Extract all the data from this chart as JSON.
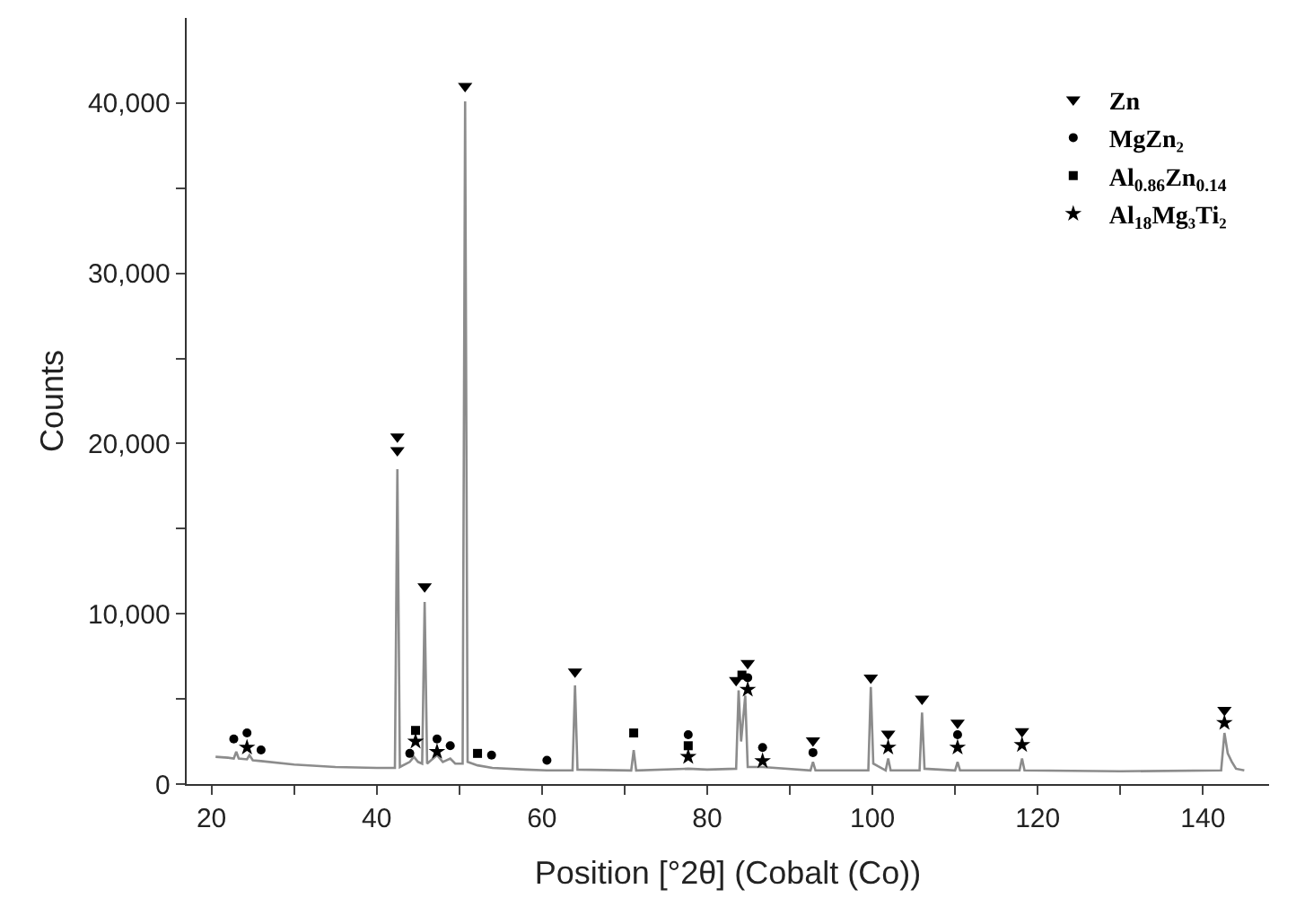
{
  "chart_data": {
    "type": "line",
    "xlabel": "Position [°2θ] (Cobalt (Co))",
    "ylabel": "Counts",
    "xlim": [
      17,
      148
    ],
    "xticks": [
      20,
      {
        "value": 30,
        "label": null
      },
      40,
      {
        "value": 50,
        "label": null
      },
      60,
      {
        "value": 70,
        "label": null
      },
      80,
      {
        "value": 90,
        "label": null
      },
      100,
      {
        "value": 110,
        "label": null
      },
      120,
      {
        "value": 130,
        "label": null
      },
      140
    ],
    "ylim": [
      0,
      45000
    ],
    "yticks": [
      0,
      {
        "value": 5000,
        "label": null
      },
      {
        "value": 10000,
        "label": "10,000"
      },
      {
        "value": 15000,
        "label": null
      },
      {
        "value": 20000,
        "label": "20,000"
      },
      {
        "value": 25000,
        "label": null
      },
      {
        "value": 30000,
        "label": "30,000"
      },
      {
        "value": 35000,
        "label": null
      },
      {
        "value": 40000,
        "label": "40,000"
      }
    ],
    "legend": "top right",
    "series": [
      {
        "color": "#8c8c8c",
        "marker": "none",
        "x": [
          20.5,
          22,
          22.7,
          23,
          23.3,
          24.3,
          24.6,
          25,
          26,
          30,
          35,
          40,
          42.2,
          42.5,
          42.8,
          44,
          44.5,
          45,
          45.5,
          45.8,
          46.1,
          47.3,
          48,
          48.9,
          49.5,
          50.4,
          50.7,
          51,
          52.2,
          54,
          58,
          60.6,
          63.7,
          64.0,
          64.3,
          70.8,
          71.1,
          71.4,
          77.7,
          80,
          83.5,
          83.8,
          84.1,
          84.6,
          84.9,
          86.7,
          92.5,
          92.8,
          93.1,
          99.5,
          99.8,
          100.1,
          101.6,
          101.9,
          102.2,
          105.7,
          106,
          106.3,
          110,
          110.3,
          110.6,
          117.8,
          118.1,
          118.4,
          130,
          142.2,
          142.6,
          143,
          143.5,
          144,
          145
        ],
        "values": [
          1600,
          1550,
          1500,
          1900,
          1500,
          1450,
          1700,
          1400,
          1350,
          1150,
          1000,
          950,
          950,
          18500,
          1000,
          1300,
          1600,
          1300,
          1200,
          10700,
          1200,
          1700,
          1300,
          1500,
          1200,
          1200,
          40100,
          1300,
          1100,
          950,
          850,
          800,
          800,
          5800,
          850,
          800,
          2000,
          800,
          900,
          850,
          900,
          5500,
          2500,
          5200,
          1000,
          1000,
          800,
          1300,
          800,
          800,
          5700,
          1200,
          800,
          1500,
          800,
          800,
          4200,
          900,
          800,
          1300,
          800,
          800,
          1500,
          800,
          750,
          800,
          3000,
          1800,
          1300,
          900,
          800
        ]
      },
      {
        "type": "scatter",
        "name": "Zn",
        "color": "#000000",
        "marker": "triangle-down",
        "x": [
          42.5,
          42.5,
          45.8,
          50.7,
          64.0,
          83.5,
          84.9,
          92.8,
          99.8,
          101.9,
          106.0,
          110.3,
          118.1,
          142.6
        ],
        "values": [
          20400,
          19600,
          11600,
          41000,
          6600,
          6100,
          7100,
          2560,
          6250,
          2950,
          5000,
          3600,
          3100,
          4350
        ]
      },
      {
        "type": "scatter",
        "name": "MgZn₂",
        "color": "#000000",
        "marker": "circle",
        "x": [
          22.7,
          24.3,
          26.0,
          44.0,
          47.3,
          48.9,
          53.9,
          60.6,
          77.7,
          84.9,
          86.7,
          92.8,
          110.3
        ],
        "values": [
          2650,
          3000,
          2000,
          1800,
          2650,
          2250,
          1700,
          1400,
          2900,
          6250,
          2150,
          1850,
          2900
        ]
      },
      {
        "type": "scatter",
        "name": "Al$_{0.86}$Zn$_{0.14}$",
        "color": "#000000",
        "marker": "square",
        "x": [
          44.7,
          52.2,
          71.1,
          77.7,
          84.2
        ],
        "values": [
          3150,
          1800,
          3000,
          2250,
          6400
        ]
      },
      {
        "type": "scatter",
        "name": "Al$_{18}$Mg₃Ti₂",
        "color": "#000000",
        "marker": "star",
        "x": [
          24.3,
          44.7,
          47.3,
          77.7,
          84.9,
          86.7,
          101.9,
          110.3,
          118.1,
          142.6
        ],
        "values": [
          2150,
          2500,
          1900,
          1600,
          5550,
          1350,
          2150,
          2150,
          2300,
          3600
        ]
      }
    ]
  }
}
